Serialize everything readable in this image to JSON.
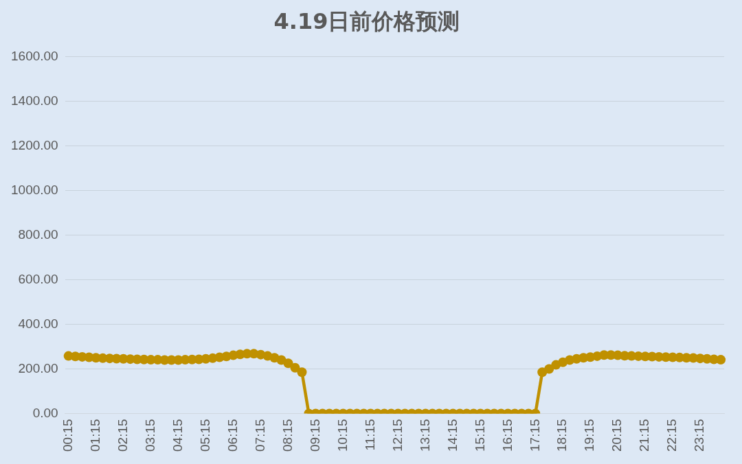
{
  "chart_data": {
    "type": "line",
    "title": "4.19日前价格预测",
    "categories": [
      "00:15",
      null,
      null,
      null,
      "01:15",
      null,
      null,
      null,
      "02:15",
      null,
      null,
      null,
      "03:15",
      null,
      null,
      null,
      "04:15",
      null,
      null,
      null,
      "05:15",
      null,
      null,
      null,
      "06:15",
      null,
      null,
      null,
      "07:15",
      null,
      null,
      null,
      "08:15",
      null,
      null,
      null,
      "09:15",
      null,
      null,
      null,
      "10:15",
      null,
      null,
      null,
      "11:15",
      null,
      null,
      null,
      "12:15",
      null,
      null,
      null,
      "13:15",
      null,
      null,
      null,
      "14:15",
      null,
      null,
      null,
      "15:15",
      null,
      null,
      null,
      "16:15",
      null,
      null,
      null,
      "17:15",
      null,
      null,
      null,
      "18:15",
      null,
      null,
      null,
      "19:15",
      null,
      null,
      null,
      "20:15",
      null,
      null,
      null,
      "21:15",
      null,
      null,
      null,
      "22:15",
      null,
      null,
      null,
      "23:15",
      null,
      null,
      null
    ],
    "series": [
      {
        "color": "#bf9000",
        "values": [
          258,
          256,
          254,
          252,
          250,
          248,
          247,
          246,
          245,
          244,
          243,
          242,
          241,
          241,
          240,
          240,
          240,
          241,
          242,
          243,
          245,
          248,
          252,
          256,
          261,
          265,
          268,
          268,
          264,
          258,
          250,
          240,
          225,
          205,
          185,
          0,
          0,
          0,
          0,
          0,
          0,
          0,
          0,
          0,
          0,
          0,
          0,
          0,
          0,
          0,
          0,
          0,
          0,
          0,
          0,
          0,
          0,
          0,
          0,
          0,
          0,
          0,
          0,
          0,
          0,
          0,
          0,
          0,
          0,
          185,
          200,
          218,
          230,
          240,
          245,
          250,
          253,
          257,
          262,
          262,
          261,
          259,
          258,
          257,
          256,
          255,
          254,
          253,
          252,
          251,
          250,
          249,
          247,
          245,
          243,
          241
        ]
      }
    ],
    "ylim": [
      0,
      1600
    ],
    "yticks": [
      {
        "value": 0,
        "label": "0.00"
      },
      {
        "value": 200,
        "label": "200.00"
      },
      {
        "value": 400,
        "label": "400.00"
      },
      {
        "value": 600,
        "label": "600.00"
      },
      {
        "value": 800,
        "label": "800.00"
      },
      {
        "value": 1000,
        "label": "1000.00"
      },
      {
        "value": 1200,
        "label": "1200.00"
      },
      {
        "value": 1400,
        "label": "1400.00"
      },
      {
        "value": 1600,
        "label": "1600.00"
      }
    ],
    "grid": "y",
    "legend": false,
    "marker": "circle",
    "line_style": "solid"
  }
}
